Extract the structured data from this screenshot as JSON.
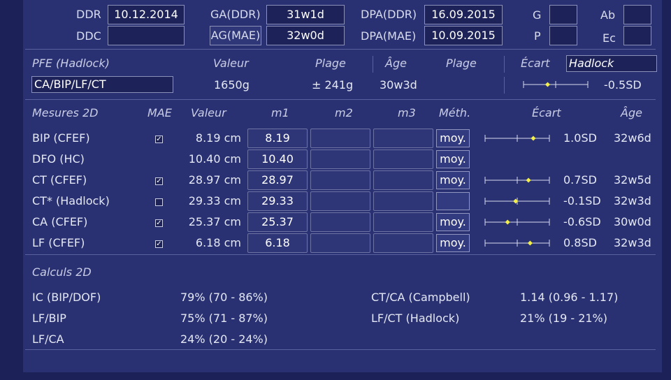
{
  "header": {
    "ddr": {
      "label": "DDR",
      "value": "10.12.2014"
    },
    "ddc": {
      "label": "DDC",
      "value": ""
    },
    "ga_ddr": {
      "label": "GA(DDR)",
      "value": "31w1d"
    },
    "ag_mae": {
      "label": "AG(MAE)",
      "value": "32w0d"
    },
    "dpa_ddr": {
      "label": "DPA(DDR)",
      "value": "16.09.2015"
    },
    "dpa_mae": {
      "label": "DPA(MAE)",
      "value": "10.09.2015"
    },
    "g": {
      "label": "G",
      "value": ""
    },
    "p": {
      "label": "P",
      "value": ""
    },
    "ab": {
      "label": "Ab",
      "value": ""
    },
    "ec": {
      "label": "Ec",
      "value": ""
    }
  },
  "pfe": {
    "title": "PFE (Hadlock)",
    "col_valeur": "Valeur",
    "col_plage": "Plage",
    "col_age": "Âge",
    "col_plage2": "Plage",
    "col_ecart": "Écart",
    "method_field": "Hadlock",
    "formula_field": "CA/BIP/LF/CT",
    "valeur": "1650g",
    "plage": "± 241g",
    "age": "30w3d",
    "ecart_sd": "-0.5SD",
    "ecart_marker": -0.5
  },
  "mesures": {
    "title": "Mesures 2D",
    "col_mae": "MAE",
    "col_valeur": "Valeur",
    "col_m1": "m1",
    "col_m2": "m2",
    "col_m3": "m3",
    "col_meth": "Méth.",
    "col_ecart": "Écart",
    "col_age": "Âge",
    "rows": [
      {
        "name": "BIP (CFEF)",
        "mae": true,
        "valeur": "8.19 cm",
        "m1": "8.19",
        "m2": "",
        "m3": "",
        "meth": "moy.",
        "sd": "1.0SD",
        "sd_value": 1.0,
        "age": "32w6d"
      },
      {
        "name": "DFO (HC)",
        "mae": null,
        "valeur": "10.40 cm",
        "m1": "10.40",
        "m2": "",
        "m3": "",
        "meth": "moy.",
        "sd": "",
        "sd_value": null,
        "age": ""
      },
      {
        "name": "CT (CFEF)",
        "mae": true,
        "valeur": "28.97 cm",
        "m1": "28.97",
        "m2": "",
        "m3": "",
        "meth": "moy.",
        "sd": "0.7SD",
        "sd_value": 0.7,
        "age": "32w5d"
      },
      {
        "name": "CT* (Hadlock)",
        "mae": false,
        "valeur": "29.33 cm",
        "m1": "29.33",
        "m2": "",
        "m3": "",
        "meth": "",
        "sd": "-0.1SD",
        "sd_value": -0.1,
        "age": "32w3d"
      },
      {
        "name": "CA (CFEF)",
        "mae": true,
        "valeur": "25.37 cm",
        "m1": "25.37",
        "m2": "",
        "m3": "",
        "meth": "moy.",
        "sd": "-0.6SD",
        "sd_value": -0.6,
        "age": "30w0d"
      },
      {
        "name": "LF (CFEF)",
        "mae": true,
        "valeur": "6.18 cm",
        "m1": "6.18",
        "m2": "",
        "m3": "",
        "meth": "moy.",
        "sd": "0.8SD",
        "sd_value": 0.8,
        "age": "32w3d"
      }
    ]
  },
  "calculs": {
    "title": "Calculs 2D",
    "left": [
      {
        "label": "IC (BIP/DOF)",
        "value": "79% (70 - 86%)"
      },
      {
        "label": "LF/BIP",
        "value": "75% (71 - 87%)"
      },
      {
        "label": "LF/CA",
        "value": "24% (20 - 24%)"
      }
    ],
    "right": [
      {
        "label": "CT/CA (Campbell)",
        "value": "1.14 (0.96 - 1.17)"
      },
      {
        "label": "LF/CT (Hadlock)",
        "value": "21% (19 - 21%)"
      }
    ]
  },
  "colors": {
    "background": "#1c2257",
    "panel": "#293172",
    "marker": "#f2ee4a"
  }
}
